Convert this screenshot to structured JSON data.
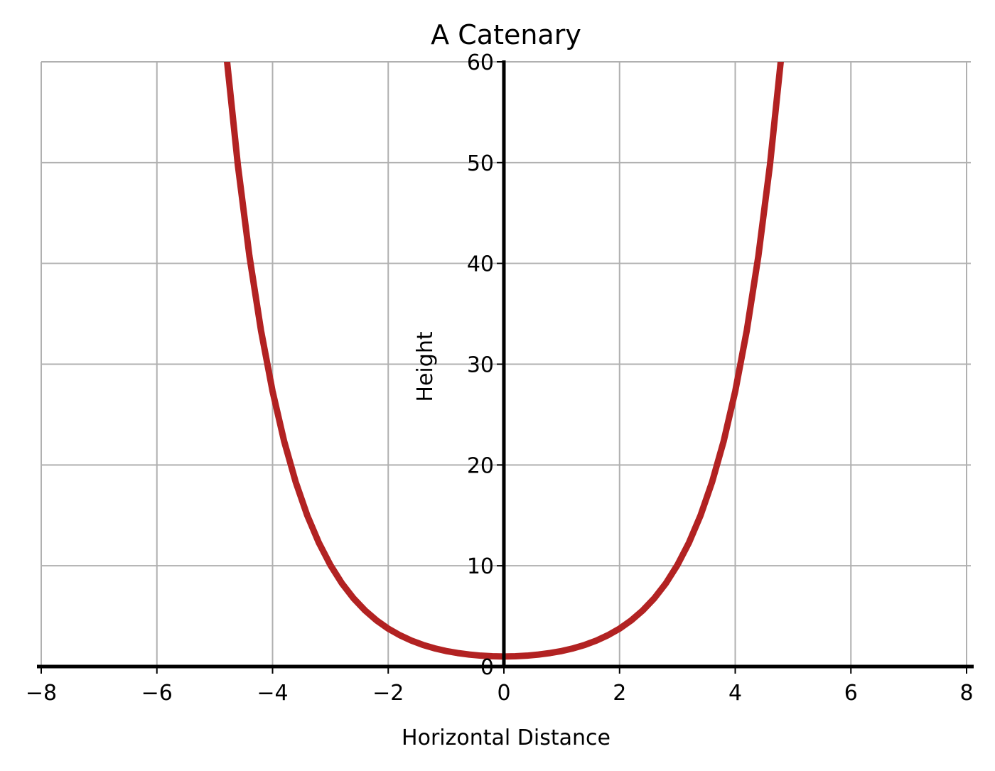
{
  "chart_data": {
    "type": "line",
    "title": "A Catenary",
    "xlabel": "Horizontal Distance",
    "ylabel": "Height",
    "xlim": [
      -8,
      8
    ],
    "ylim": [
      0,
      60
    ],
    "grid": true,
    "xticks": [
      -8,
      -6,
      -4,
      -2,
      0,
      2,
      4,
      6,
      8
    ],
    "xtick_labels": [
      "−8",
      "−6",
      "−4",
      "−2",
      "0",
      "2",
      "4",
      "6",
      "8"
    ],
    "yticks": [
      0,
      10,
      20,
      30,
      40,
      50,
      60
    ],
    "ytick_labels": [
      "0",
      "10",
      "20",
      "30",
      "40",
      "50",
      "60"
    ],
    "series": [
      {
        "color": "#b22222",
        "x": [
          -4.8,
          -4.6,
          -4.4,
          -4.2,
          -4.0,
          -3.8,
          -3.6,
          -3.4,
          -3.2,
          -3.0,
          -2.8,
          -2.6,
          -2.4,
          -2.2,
          -2.0,
          -1.8,
          -1.6,
          -1.4,
          -1.2,
          -1.0,
          -0.8,
          -0.6,
          -0.4,
          -0.2,
          0.0,
          0.2,
          0.4,
          0.6,
          0.8,
          1.0,
          1.2,
          1.4,
          1.6,
          1.8,
          2.0,
          2.2,
          2.4,
          2.6,
          2.8,
          3.0,
          3.2,
          3.4,
          3.6,
          3.8,
          4.0,
          4.2,
          4.4,
          4.6,
          4.8
        ],
        "y": [
          60.76,
          49.75,
          40.73,
          33.35,
          27.31,
          22.36,
          18.31,
          14.99,
          12.29,
          10.07,
          8.25,
          6.77,
          5.56,
          4.57,
          3.76,
          3.11,
          2.58,
          2.15,
          1.81,
          1.54,
          1.34,
          1.19,
          1.08,
          1.02,
          1.0,
          1.02,
          1.08,
          1.19,
          1.34,
          1.54,
          1.81,
          2.15,
          2.58,
          3.11,
          3.76,
          4.57,
          5.56,
          6.77,
          8.25,
          10.07,
          12.29,
          14.99,
          18.31,
          22.36,
          27.31,
          33.35,
          40.73,
          49.75,
          60.76
        ]
      }
    ],
    "grid_color": "#b0b0b0",
    "axis_color": "#000000"
  }
}
